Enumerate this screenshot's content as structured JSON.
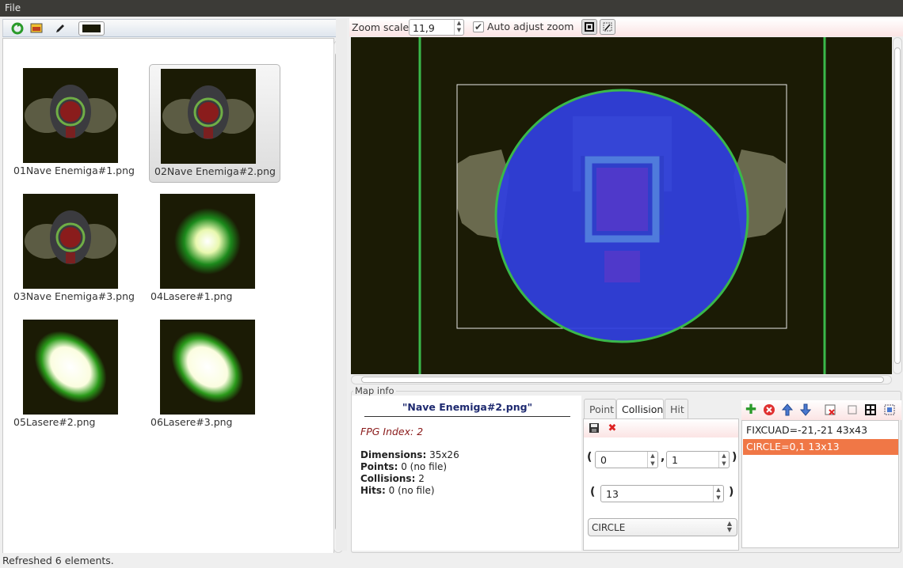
{
  "menubar": {
    "file_label": "File"
  },
  "thumbnails": [
    {
      "caption": "01Nave Enemiga#1.png",
      "kind": "ship"
    },
    {
      "caption": "02Nave Enemiga#2.png",
      "kind": "ship",
      "selected": true
    },
    {
      "caption": "03Nave Enemiga#3.png",
      "kind": "ship"
    },
    {
      "caption": "04Lasere#1.png",
      "kind": "laser-small"
    },
    {
      "caption": "05Lasere#2.png",
      "kind": "laser-large"
    },
    {
      "caption": "06Lasere#3.png",
      "kind": "laser-large"
    }
  ],
  "zoom": {
    "label": "Zoom scale:",
    "value": "11,9",
    "auto_label": "Auto adjust zoom",
    "auto_checked": true
  },
  "map_info": {
    "group_title": "Map info",
    "name": "\"Nave Enemiga#2.png\"",
    "fpg_index": "FPG Index: 2",
    "dimensions_label": "Dimensions:",
    "dimensions_value": " 35x26",
    "points_label": "Points:",
    "points_value": " 0 (no file)",
    "collisions_label": "Collisions:",
    "collisions_value": " 2",
    "hits_label": "Hits:",
    "hits_value": " 0 (no file)"
  },
  "tabs": [
    {
      "label": "Point"
    },
    {
      "label": "Collision",
      "active": true
    },
    {
      "label": "Hit"
    }
  ],
  "collision_editor": {
    "x": "0",
    "y": "1",
    "radius": "13",
    "shape": "CIRCLE",
    "open_paren": "(",
    "close_paren": ")",
    "comma": ","
  },
  "collision_list": [
    {
      "label": "FIXCUAD=-21,-21 43x43"
    },
    {
      "label": "CIRCLE=0,1 13x13",
      "selected": true
    }
  ],
  "status": {
    "text": "Refreshed 6 elements."
  },
  "colors": {
    "accent_selection": "#f07746",
    "canvas_bg": "#1b1b05",
    "collision_guide": "#3ab84a",
    "circle_fill": "#2f3fdc"
  }
}
